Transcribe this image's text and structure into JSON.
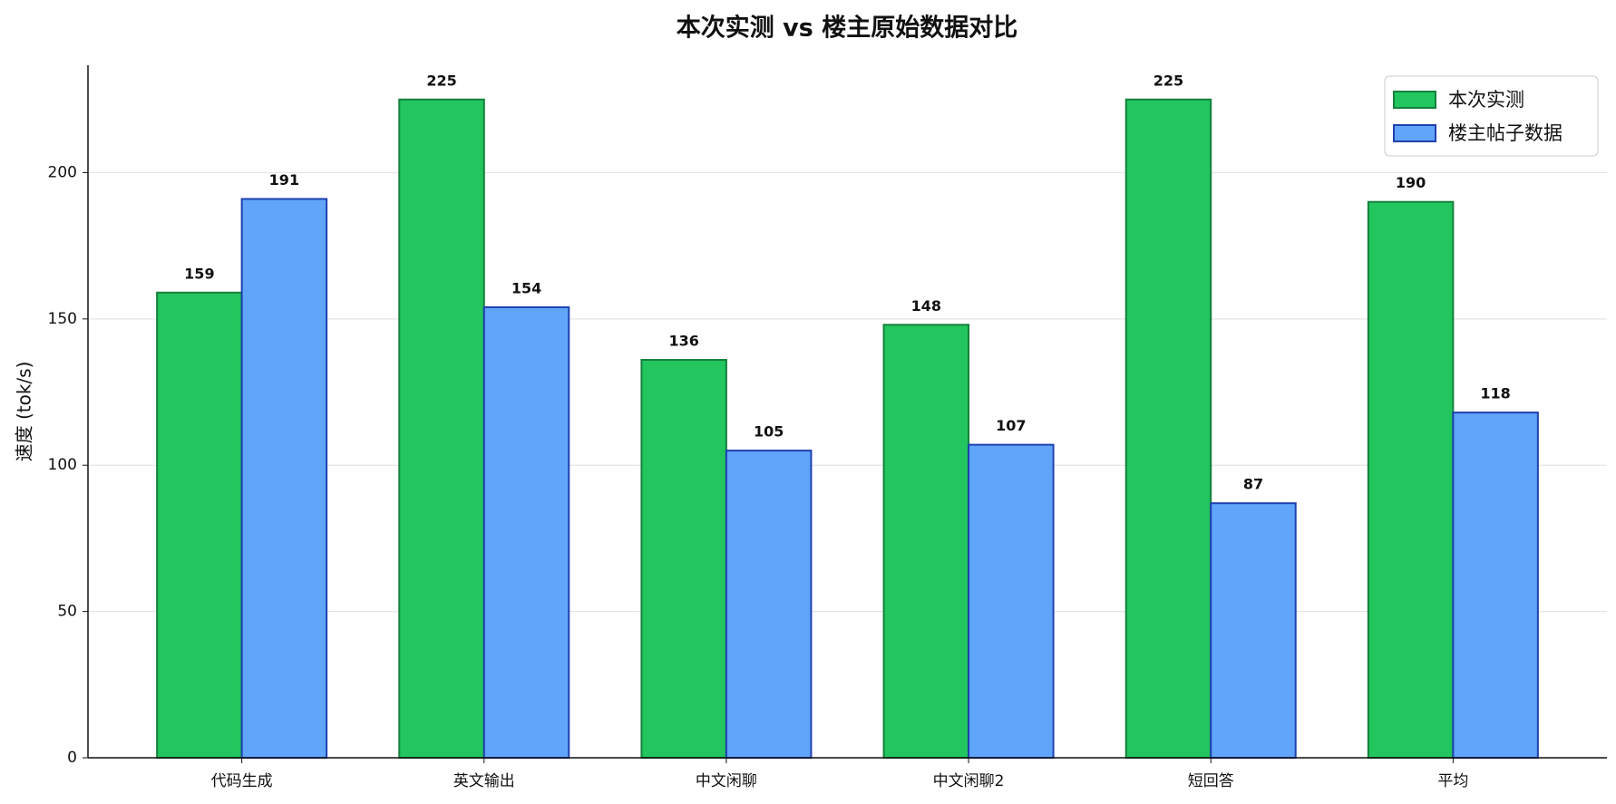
{
  "chart_data": {
    "type": "bar",
    "title": "本次实测 vs 楼主原始数据对比",
    "y_label": "速度 (tok/s)",
    "categories": [
      "代码生成",
      "英文输出",
      "中文闲聊",
      "中文闲聊2",
      "短回答",
      "平均"
    ],
    "series": [
      {
        "name": "本次实测",
        "color": "#22c55e",
        "edgecolor": "#15803d",
        "values": [
          159,
          225,
          136,
          148,
          225,
          190
        ]
      },
      {
        "name": "楼主帖子数据",
        "color": "#60a5fa",
        "edgecolor": "#1e40af",
        "values": [
          191,
          154,
          105,
          107,
          87,
          118
        ]
      }
    ],
    "ylim": [
      0,
      236.7
    ],
    "yticks": [
      0,
      50,
      100,
      150,
      200
    ],
    "grid": true,
    "legend": "upper right"
  }
}
